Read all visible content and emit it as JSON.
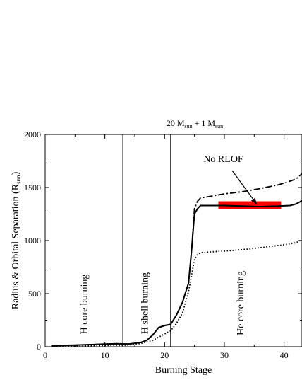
{
  "chart_data": {
    "type": "line",
    "title": "20 M",
    "title_sub1": "sun",
    "title_mid": " + 1 M",
    "title_sub2": "sun",
    "xlabel": "Burning Stage",
    "ylabel_main": "Radius & Orbital Separation (R",
    "ylabel_sub": "sun",
    "ylabel_close": ")",
    "xlim": [
      0,
      43
    ],
    "ylim": [
      0,
      2000
    ],
    "xticks": [
      0,
      10,
      20,
      30,
      40
    ],
    "yticks": [
      0,
      500,
      1000,
      1500,
      2000
    ],
    "phase_lines": [
      13,
      21
    ],
    "phase_labels": [
      "H core burning",
      "H shell burning",
      "He core burning"
    ],
    "annotation": "No RLOF",
    "highlight": {
      "x": [
        29,
        39.5
      ],
      "y": [
        1300,
        1370
      ],
      "color": "#ff0000"
    },
    "series": [
      {
        "style": "solid",
        "x": [
          1,
          5,
          10,
          12,
          14,
          16,
          17,
          18,
          19,
          20,
          21,
          22,
          23,
          24,
          24.5,
          25,
          25.5,
          26,
          28,
          30,
          33,
          36,
          39,
          41,
          42,
          43
        ],
        "y": [
          10,
          15,
          25,
          28,
          25,
          40,
          60,
          110,
          180,
          200,
          210,
          300,
          420,
          600,
          900,
          1250,
          1300,
          1330,
          1330,
          1330,
          1325,
          1320,
          1325,
          1330,
          1345,
          1375
        ]
      },
      {
        "style": "dashdot",
        "x": [
          1,
          5,
          10,
          12,
          14,
          16,
          17,
          18,
          19,
          20,
          21,
          22,
          23,
          24,
          24.5,
          25,
          25.5,
          26,
          28,
          30,
          33,
          36,
          39,
          41,
          42,
          43
        ],
        "y": [
          10,
          15,
          25,
          28,
          25,
          40,
          60,
          110,
          180,
          200,
          210,
          300,
          420,
          600,
          900,
          1300,
          1370,
          1400,
          1420,
          1440,
          1460,
          1490,
          1525,
          1560,
          1580,
          1630
        ]
      },
      {
        "style": "dotted",
        "x": [
          1,
          5,
          10,
          12,
          14,
          16,
          18,
          20,
          21,
          22,
          23,
          24,
          25,
          25.5,
          26,
          28,
          31,
          34,
          37,
          40,
          42,
          43
        ],
        "y": [
          5,
          8,
          12,
          14,
          15,
          30,
          60,
          120,
          150,
          220,
          320,
          520,
          820,
          870,
          885,
          895,
          905,
          920,
          940,
          960,
          980,
          1010
        ]
      }
    ]
  }
}
